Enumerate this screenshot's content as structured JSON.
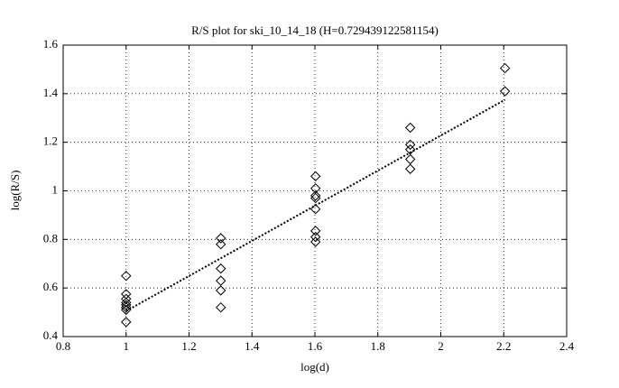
{
  "chart_data": {
    "type": "scatter",
    "title": "R/S plot for ski_10_14_18 (H=0.729439122581154)",
    "x_label": "log(d)",
    "y_label": "log(R/S)",
    "x": [
      1,
      1,
      1,
      1,
      1,
      1,
      1,
      1,
      1.301,
      1.301,
      1.301,
      1.301,
      1.301,
      1.301,
      1.602,
      1.602,
      1.602,
      1.602,
      1.602,
      1.602,
      1.602,
      1.602,
      1.903,
      1.903,
      1.903,
      1.903,
      1.903,
      2.204,
      2.204
    ],
    "values": [
      0.65,
      0.575,
      0.555,
      0.54,
      0.53,
      0.52,
      0.51,
      0.46,
      0.805,
      0.78,
      0.68,
      0.63,
      0.59,
      0.52,
      1.06,
      1.01,
      0.98,
      0.97,
      0.925,
      0.835,
      0.81,
      0.79,
      1.26,
      1.19,
      1.17,
      1.13,
      1.09,
      1.505,
      1.41
    ],
    "color": "#000000",
    "fit": {
      "x": [
        1,
        2.204
      ],
      "values": [
        0.505,
        1.375
      ]
    },
    "xlim": [
      0.8,
      2.4
    ],
    "xticks": [
      0.8,
      1,
      1.2,
      1.4,
      1.6,
      1.8,
      2,
      2.2,
      2.4
    ],
    "ylim": [
      0.4,
      1.6
    ],
    "yticks": [
      0.4,
      0.6,
      0.8,
      1,
      1.2,
      1.4,
      1.6
    ],
    "grid": true
  }
}
